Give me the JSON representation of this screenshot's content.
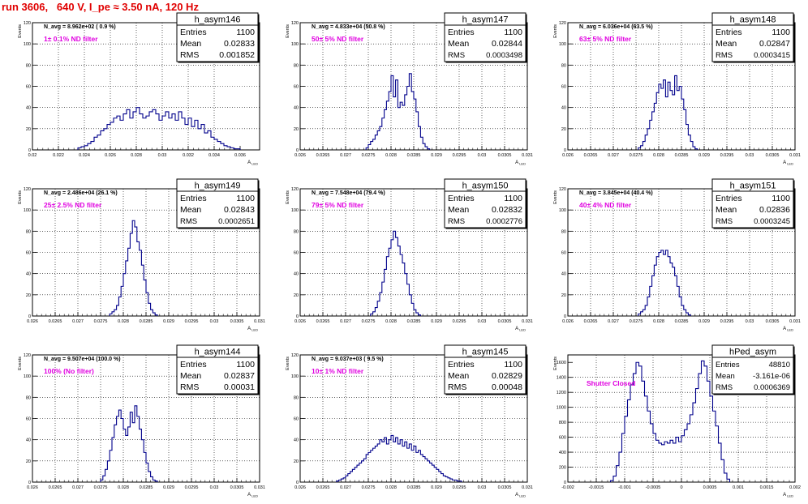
{
  "run_title": "run 3606,   640 V, I_pe ≈ 3.50 nA, 120 Hz",
  "chart_data": [
    {
      "type": "histogram",
      "title": "h_asym146",
      "stats": [
        [
          "Entries",
          "1100"
        ],
        [
          "Mean",
          "0.02833"
        ],
        [
          "RMS",
          "0.001852"
        ]
      ],
      "navg": "N_avg = 8.962e+02 ( 0.9 %)",
      "filter": "1± 0.1% ND filter",
      "ylabel": "Events",
      "xlabel": "A_LED",
      "xlim": [
        0.02,
        0.0375
      ],
      "ylim": [
        0,
        120
      ],
      "xticks": [
        0.02,
        0.022,
        0.024,
        0.026,
        0.028,
        0.03,
        0.032,
        0.034,
        0.036
      ],
      "xtick_labels": [
        "0.02",
        "0.022",
        "0.024",
        "0.026",
        "0.028",
        "0.03",
        "0.032",
        "0.034",
        "0.036"
      ],
      "yticks": [
        0,
        20,
        40,
        60,
        80,
        100,
        120
      ],
      "x_start": 0.0235,
      "bin_width": 0.00025,
      "values": [
        2,
        3,
        4,
        6,
        8,
        12,
        14,
        18,
        20,
        24,
        26,
        30,
        32,
        28,
        34,
        38,
        30,
        36,
        40,
        34,
        30,
        32,
        36,
        38,
        34,
        28,
        32,
        36,
        30,
        34,
        28,
        36,
        30,
        24,
        30,
        22,
        28,
        20,
        24,
        16,
        18,
        12,
        10,
        8,
        6,
        4,
        3,
        2,
        1,
        1
      ]
    },
    {
      "type": "histogram",
      "title": "h_asym147",
      "stats": [
        [
          "Entries",
          "1100"
        ],
        [
          "Mean",
          "0.02844"
        ],
        [
          "RMS",
          "0.0003498"
        ]
      ],
      "navg": "N_avg = 4.833e+04 (50.8 %)",
      "filter": "50± 5% ND filter",
      "ylabel": "Events",
      "xlabel": "A_LED",
      "xlim": [
        0.026,
        0.031
      ],
      "ylim": [
        0,
        120
      ],
      "xticks": [
        0.026,
        0.0265,
        0.027,
        0.0275,
        0.028,
        0.0285,
        0.029,
        0.0295,
        0.03,
        0.0305,
        0.031
      ],
      "xtick_labels": [
        "0.026",
        "0.0265",
        "0.027",
        "0.0275",
        "0.028",
        "0.0285",
        "0.029",
        "0.0295",
        "0.03",
        "0.0305",
        "0.031"
      ],
      "yticks": [
        0,
        20,
        40,
        60,
        80,
        100,
        120
      ],
      "x_start": 0.02745,
      "bin_width": 5e-05,
      "values": [
        2,
        5,
        8,
        10,
        14,
        18,
        22,
        30,
        38,
        46,
        55,
        70,
        50,
        66,
        40,
        45,
        42,
        52,
        60,
        72,
        55,
        48,
        36,
        22,
        12,
        6,
        3,
        1
      ]
    },
    {
      "type": "histogram",
      "title": "h_asym148",
      "stats": [
        [
          "Entries",
          "1100"
        ],
        [
          "Mean",
          "0.02847"
        ],
        [
          "RMS",
          "0.0003415"
        ]
      ],
      "navg": "N_avg = 6.036e+04 (63.5 %)",
      "filter": "63± 5% ND filter",
      "ylabel": "Events",
      "xlabel": "A_LED",
      "xlim": [
        0.026,
        0.031
      ],
      "ylim": [
        0,
        120
      ],
      "xticks": [
        0.026,
        0.0265,
        0.027,
        0.0275,
        0.028,
        0.0285,
        0.029,
        0.0295,
        0.03,
        0.0305,
        0.031
      ],
      "xtick_labels": [
        "0.026",
        "0.0265",
        "0.027",
        "0.0275",
        "0.028",
        "0.0285",
        "0.029",
        "0.0295",
        "0.03",
        "0.0305",
        "0.031"
      ],
      "yticks": [
        0,
        20,
        40,
        60,
        80,
        100,
        120
      ],
      "x_start": 0.02755,
      "bin_width": 5e-05,
      "values": [
        2,
        4,
        8,
        14,
        20,
        28,
        36,
        44,
        54,
        62,
        58,
        66,
        50,
        64,
        56,
        52,
        70,
        56,
        60,
        48,
        38,
        24,
        14,
        8,
        3,
        1
      ]
    },
    {
      "type": "histogram",
      "title": "h_asym149",
      "stats": [
        [
          "Entries",
          "1100"
        ],
        [
          "Mean",
          "0.02843"
        ],
        [
          "RMS",
          "0.0002651"
        ]
      ],
      "navg": "N_avg = 2.486e+04 (26.1 %)",
      "filter": "25± 2.5% ND filter",
      "ylabel": "Events",
      "xlabel": "A_LED",
      "xlim": [
        0.026,
        0.031
      ],
      "ylim": [
        0,
        120
      ],
      "xticks": [
        0.026,
        0.0265,
        0.027,
        0.0275,
        0.028,
        0.0285,
        0.029,
        0.0295,
        0.03,
        0.0305,
        0.031
      ],
      "xtick_labels": [
        "0.026",
        "0.0265",
        "0.027",
        "0.0275",
        "0.028",
        "0.0285",
        "0.029",
        "0.0295",
        "0.03",
        "0.0305",
        "0.031"
      ],
      "yticks": [
        0,
        20,
        40,
        60,
        80,
        100,
        120
      ],
      "x_start": 0.0277,
      "bin_width": 5e-05,
      "values": [
        2,
        4,
        6,
        10,
        18,
        28,
        40,
        52,
        64,
        78,
        90,
        84,
        70,
        62,
        48,
        34,
        22,
        12,
        6,
        3,
        1
      ]
    },
    {
      "type": "histogram",
      "title": "h_asym150",
      "stats": [
        [
          "Entries",
          "1100"
        ],
        [
          "Mean",
          "0.02832"
        ],
        [
          "RMS",
          "0.0002776"
        ]
      ],
      "navg": "N_avg = 7.548e+04 (79.4 %)",
      "filter": "79± 5% ND filter",
      "ylabel": "Events",
      "xlabel": "A_LED",
      "xlim": [
        0.026,
        0.031
      ],
      "ylim": [
        0,
        120
      ],
      "xticks": [
        0.026,
        0.0265,
        0.027,
        0.0275,
        0.028,
        0.0285,
        0.029,
        0.0295,
        0.03,
        0.0305,
        0.031
      ],
      "xtick_labels": [
        "0.026",
        "0.0265",
        "0.027",
        "0.0275",
        "0.028",
        "0.0285",
        "0.029",
        "0.0295",
        "0.03",
        "0.0305",
        "0.031"
      ],
      "yticks": [
        0,
        20,
        40,
        60,
        80,
        100,
        120
      ],
      "x_start": 0.02755,
      "bin_width": 5e-05,
      "values": [
        2,
        4,
        8,
        14,
        22,
        32,
        44,
        56,
        64,
        72,
        80,
        74,
        66,
        58,
        50,
        40,
        30,
        20,
        12,
        6,
        3,
        1
      ]
    },
    {
      "type": "histogram",
      "title": "h_asym151",
      "stats": [
        [
          "Entries",
          "1100"
        ],
        [
          "Mean",
          "0.02836"
        ],
        [
          "RMS",
          "0.0003245"
        ]
      ],
      "navg": "N_avg = 3.845e+04 (40.4 %)",
      "filter": "40± 4% ND filter",
      "ylabel": "Events",
      "xlabel": "A_LED",
      "xlim": [
        0.026,
        0.031
      ],
      "ylim": [
        0,
        120
      ],
      "xticks": [
        0.026,
        0.0265,
        0.027,
        0.0275,
        0.028,
        0.0285,
        0.029,
        0.0295,
        0.03,
        0.0305,
        0.031
      ],
      "xtick_labels": [
        "0.026",
        "0.0265",
        "0.027",
        "0.0275",
        "0.028",
        "0.0285",
        "0.029",
        "0.0295",
        "0.03",
        "0.0305",
        "0.031"
      ],
      "yticks": [
        0,
        20,
        40,
        60,
        80,
        100,
        120
      ],
      "x_start": 0.02755,
      "bin_width": 5e-05,
      "values": [
        2,
        4,
        6,
        10,
        18,
        28,
        38,
        48,
        56,
        60,
        62,
        58,
        62,
        56,
        50,
        46,
        38,
        28,
        18,
        10,
        6,
        3,
        1
      ]
    },
    {
      "type": "histogram",
      "title": "h_asym144",
      "stats": [
        [
          "Entries",
          "1100"
        ],
        [
          "Mean",
          "0.02837"
        ],
        [
          "RMS",
          "0.00031"
        ]
      ],
      "navg": "N_avg = 9.507e+04 (100.0 %)",
      "filter": "100% (No filter)",
      "ylabel": "Events",
      "xlabel": "A_LED",
      "xlim": [
        0.026,
        0.031
      ],
      "ylim": [
        0,
        120
      ],
      "xticks": [
        0.026,
        0.0265,
        0.027,
        0.0275,
        0.028,
        0.0285,
        0.029,
        0.0295,
        0.03,
        0.0305,
        0.031
      ],
      "xtick_labels": [
        "0.026",
        "0.0265",
        "0.027",
        "0.0275",
        "0.028",
        "0.0285",
        "0.029",
        "0.0295",
        "0.03",
        "0.0305",
        "0.031"
      ],
      "yticks": [
        0,
        20,
        40,
        60,
        80,
        100,
        120
      ],
      "x_start": 0.0275,
      "bin_width": 5e-05,
      "values": [
        2,
        6,
        12,
        20,
        30,
        42,
        54,
        62,
        68,
        60,
        50,
        44,
        52,
        66,
        56,
        72,
        62,
        50,
        40,
        28,
        18,
        10,
        5,
        2,
        1
      ]
    },
    {
      "type": "histogram",
      "title": "h_asym145",
      "stats": [
        [
          "Entries",
          "1100"
        ],
        [
          "Mean",
          "0.02829"
        ],
        [
          "RMS",
          "0.00048"
        ]
      ],
      "navg": "N_avg = 9.037e+03 ( 9.5 %)",
      "filter": "10± 1% ND filter",
      "ylabel": "Events",
      "xlabel": "A_LED",
      "xlim": [
        0.026,
        0.031
      ],
      "ylim": [
        0,
        120
      ],
      "xticks": [
        0.026,
        0.0265,
        0.027,
        0.0275,
        0.028,
        0.0285,
        0.029,
        0.0295,
        0.03,
        0.0305,
        0.031
      ],
      "xtick_labels": [
        "0.026",
        "0.0265",
        "0.027",
        "0.0275",
        "0.028",
        "0.0285",
        "0.029",
        "0.0295",
        "0.03",
        "0.0305",
        "0.031"
      ],
      "yticks": [
        0,
        20,
        40,
        60,
        80,
        100,
        120
      ],
      "x_start": 0.0268,
      "bin_width": 5e-05,
      "values": [
        1,
        2,
        3,
        4,
        6,
        8,
        10,
        12,
        14,
        16,
        18,
        20,
        22,
        26,
        28,
        30,
        32,
        34,
        36,
        40,
        38,
        42,
        36,
        40,
        44,
        38,
        42,
        36,
        40,
        34,
        38,
        32,
        36,
        30,
        34,
        28,
        30,
        26,
        24,
        22,
        20,
        18,
        16,
        14,
        12,
        10,
        8,
        6,
        5,
        4,
        3,
        2,
        2,
        1,
        1
      ]
    },
    {
      "type": "histogram",
      "title": "hPed_asym",
      "stats": [
        [
          "Entries",
          "48810"
        ],
        [
          "Mean",
          "-3.161e-06"
        ],
        [
          "RMS",
          "0.0006369"
        ]
      ],
      "navg": "",
      "filter": "Shutter Closed",
      "ylabel": "Events",
      "xlabel": "A_LED",
      "xlim": [
        -0.002,
        0.002
      ],
      "ylim": [
        0,
        1700
      ],
      "xticks": [
        -0.002,
        -0.0015,
        -0.001,
        -0.0005,
        0,
        0.0005,
        0.001,
        0.0015,
        0.002
      ],
      "xtick_labels": [
        "-0.002",
        "-0.0015",
        "-0.001",
        "-0.0005",
        "0",
        "0.0005",
        "0.001",
        "0.0015",
        "0.002"
      ],
      "yticks": [
        0,
        200,
        400,
        600,
        800,
        1000,
        1200,
        1400,
        1600
      ],
      "x_start": -0.00125,
      "bin_width": 5e-05,
      "values": [
        20,
        80,
        220,
        400,
        650,
        880,
        1100,
        1300,
        1450,
        1600,
        1550,
        1350,
        1150,
        950,
        780,
        650,
        560,
        520,
        500,
        540,
        520,
        560,
        520,
        600,
        540,
        620,
        700,
        780,
        900,
        1060,
        1250,
        1450,
        1620,
        1550,
        1350,
        1150,
        950,
        750,
        520,
        300,
        120,
        40
      ]
    }
  ]
}
